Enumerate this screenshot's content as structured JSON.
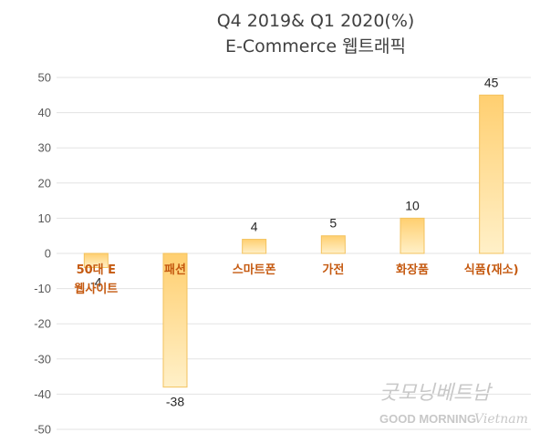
{
  "chart_data": {
    "type": "bar",
    "title": "Q4 2019& Q1 2020(%)",
    "subtitle": "E-Commerce 웹트래픽",
    "categories": [
      "50대 E\n웹사이트",
      "패션",
      "스마트폰",
      "가전",
      "화장품",
      "식품(재소)"
    ],
    "values": [
      -4,
      -38,
      4,
      5,
      10,
      45
    ],
    "ylim": [
      -50,
      50
    ],
    "yticks": [
      50,
      40,
      30,
      20,
      10,
      0,
      -10,
      -20,
      -30,
      -40,
      -50
    ],
    "grid": true,
    "bar_color": "#ffd98c",
    "bar_color_top": "#ffcf70",
    "bar_color_bottom": "#fff0c8",
    "bar_border": "#f3c25d",
    "category_label_color": "#c55a11"
  },
  "watermark": {
    "script": "굿모닝베트남",
    "text_main": "GOOD MORNING",
    "text_script": "Vietnam",
    "color": "#c8c8c8"
  }
}
